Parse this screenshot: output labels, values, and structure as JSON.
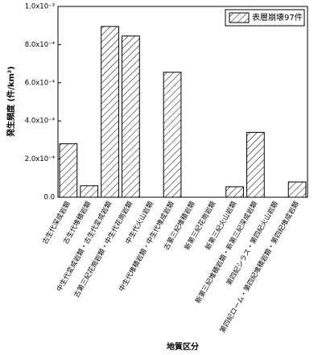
{
  "chart_data": {
    "type": "bar",
    "x_label": "地質区分",
    "y_label": "発生頻度 (件/km²)",
    "categories": [
      "古生代深成岩類",
      "古生代堆積岩類",
      "中生代変成岩類・古生代変成岩類",
      "古第三紀花崗岩類・中生代花崗岩類",
      "中生代火山岩類",
      "中生代堆積岩類・中生代堆成岩類",
      "古第三紀堆積岩類",
      "新第三紀花崗岩類",
      "新第三紀火山岩類",
      "新第三紀堆積岩類・新第三紀深成岩類",
      "第四紀シラス・第四紀火山岩類",
      "第四紀ローム・第四紀堆積岩類・第四紀堆成岩類"
    ],
    "series": [
      {
        "name": "表層崩壊97件",
        "color": "#000000",
        "values": [
          0.00028,
          6e-05,
          0.000895,
          0.000845,
          0,
          0.000655,
          0,
          0,
          5.5e-05,
          0.00034,
          0,
          8e-05
        ]
      }
    ],
    "ylim": [
      0,
      0.001
    ],
    "yticks": [
      {
        "value": 0,
        "label": "0.0"
      },
      {
        "value": 0.0002,
        "label": "2.0x10⁻⁴"
      },
      {
        "value": 0.0004,
        "label": "4.0x10⁻⁴"
      },
      {
        "value": 0.0006,
        "label": "6.0x10⁻⁴"
      },
      {
        "value": 0.0008,
        "label": "8.0x10⁻⁴"
      },
      {
        "value": 0.001,
        "label": "1.0x10⁻³"
      }
    ],
    "legend": "upper right"
  }
}
